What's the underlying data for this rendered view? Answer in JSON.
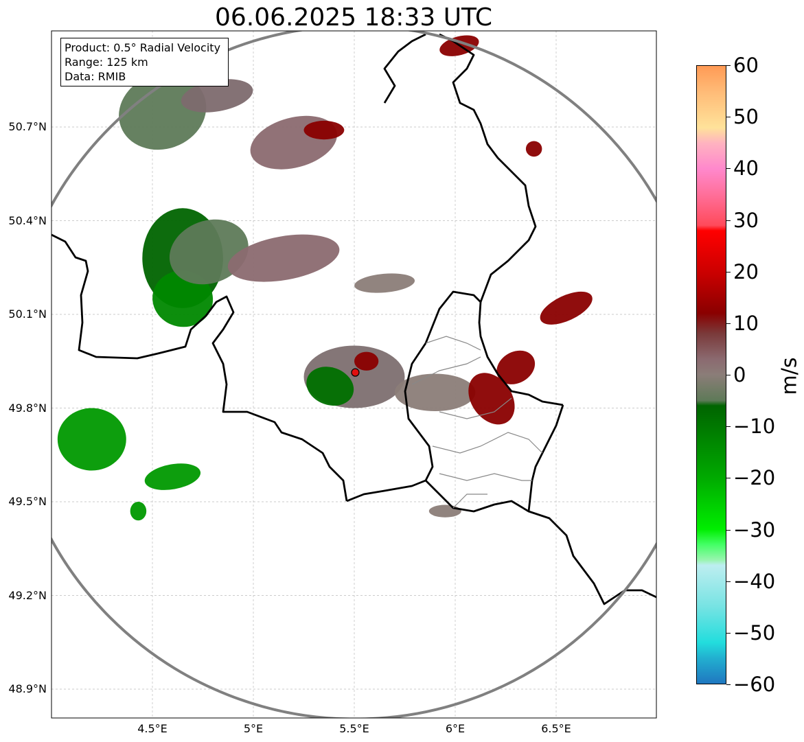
{
  "title": "06.06.2025 18:33 UTC",
  "info": {
    "product": "Product: 0.5° Radial Velocity",
    "range": "Range: 125 km",
    "source": "Data: RMIB"
  },
  "y_ticks": [
    "50.7°N",
    "50.4°N",
    "50.1°N",
    "49.8°N",
    "49.5°N",
    "49.2°N",
    "48.9°N"
  ],
  "x_ticks": [
    "4.5°E",
    "5°E",
    "5.5°E",
    "6°E",
    "6.5°E"
  ],
  "colorbar": {
    "unit": "m/s",
    "ticks": [
      "60",
      "50",
      "40",
      "30",
      "20",
      "10",
      "0",
      "−10",
      "−20",
      "−30",
      "−40",
      "−50",
      "−60"
    ],
    "stops": [
      {
        "v": 60,
        "c": "#ff9a55"
      },
      {
        "v": 55,
        "c": "#ffbb77"
      },
      {
        "v": 48,
        "c": "#ffe29a"
      },
      {
        "v": 45,
        "c": "#ffb3c0"
      },
      {
        "v": 40,
        "c": "#ff88cc"
      },
      {
        "v": 35,
        "c": "#ff6f9a"
      },
      {
        "v": 29,
        "c": "#ff4a5a"
      },
      {
        "v": 28,
        "c": "#ff0000"
      },
      {
        "v": 20,
        "c": "#cc0000"
      },
      {
        "v": 12,
        "c": "#8a0000"
      },
      {
        "v": 8,
        "c": "#7a3a3a"
      },
      {
        "v": 3,
        "c": "#8b6a70"
      },
      {
        "v": 0,
        "c": "#8b7d78"
      },
      {
        "v": -5,
        "c": "#5e7a58"
      },
      {
        "v": -6,
        "c": "#006400"
      },
      {
        "v": -20,
        "c": "#00aa00"
      },
      {
        "v": -30,
        "c": "#00ee00"
      },
      {
        "v": -33,
        "c": "#44ff66"
      },
      {
        "v": -36,
        "c": "#99f5b0"
      },
      {
        "v": -37,
        "c": "#bdeef0"
      },
      {
        "v": -45,
        "c": "#77e3e3"
      },
      {
        "v": -52,
        "c": "#22dddd"
      },
      {
        "v": -55,
        "c": "#22b0d0"
      },
      {
        "v": -60,
        "c": "#1f77c0"
      }
    ]
  },
  "map": {
    "lon_range": [
      4.0,
      7.0
    ],
    "lat_range": [
      48.8,
      50.98
    ],
    "radar": {
      "lon": 5.505,
      "lat": 49.914
    },
    "range_circle_color": "#808080",
    "border_color": "#000000",
    "admin_border_color": "#808080",
    "echoes": [
      {
        "lon": 4.55,
        "lat": 50.75,
        "rx": 0.22,
        "ry": 0.12,
        "color": "#5e7a58",
        "rot": -20
      },
      {
        "lon": 4.82,
        "lat": 50.8,
        "rx": 0.18,
        "ry": 0.05,
        "color": "#7d6a6e",
        "rot": -10
      },
      {
        "lon": 5.2,
        "lat": 50.65,
        "rx": 0.22,
        "ry": 0.08,
        "color": "#8b6a70",
        "rot": -15
      },
      {
        "lon": 5.35,
        "lat": 50.69,
        "rx": 0.1,
        "ry": 0.03,
        "color": "#8a0000",
        "rot": 0
      },
      {
        "lon": 4.65,
        "lat": 50.28,
        "rx": 0.2,
        "ry": 0.16,
        "color": "#006400",
        "rot": 0
      },
      {
        "lon": 4.65,
        "lat": 50.15,
        "rx": 0.15,
        "ry": 0.09,
        "color": "#008800",
        "rot": 10
      },
      {
        "lon": 4.78,
        "lat": 50.3,
        "rx": 0.2,
        "ry": 0.1,
        "color": "#5e7a58",
        "rot": -20
      },
      {
        "lon": 5.15,
        "lat": 50.28,
        "rx": 0.28,
        "ry": 0.07,
        "color": "#8b6a70",
        "rot": -10
      },
      {
        "lon": 5.5,
        "lat": 49.9,
        "rx": 0.25,
        "ry": 0.1,
        "color": "#7d6f70",
        "rot": 0
      },
      {
        "lon": 5.38,
        "lat": 49.87,
        "rx": 0.12,
        "ry": 0.06,
        "color": "#007000",
        "rot": 20
      },
      {
        "lon": 5.56,
        "lat": 49.95,
        "rx": 0.06,
        "ry": 0.03,
        "color": "#8a0000",
        "rot": 0
      },
      {
        "lon": 5.65,
        "lat": 50.2,
        "rx": 0.15,
        "ry": 0.03,
        "color": "#8b7d78",
        "rot": -5
      },
      {
        "lon": 5.9,
        "lat": 49.85,
        "rx": 0.2,
        "ry": 0.06,
        "color": "#8b7d78",
        "rot": 0
      },
      {
        "lon": 6.18,
        "lat": 49.83,
        "rx": 0.1,
        "ry": 0.09,
        "color": "#8a0000",
        "rot": -35
      },
      {
        "lon": 6.3,
        "lat": 49.93,
        "rx": 0.1,
        "ry": 0.05,
        "color": "#8a0000",
        "rot": -30
      },
      {
        "lon": 6.55,
        "lat": 50.12,
        "rx": 0.14,
        "ry": 0.04,
        "color": "#8a0000",
        "rot": -25
      },
      {
        "lon": 4.2,
        "lat": 49.7,
        "rx": 0.17,
        "ry": 0.1,
        "color": "#009900",
        "rot": 0
      },
      {
        "lon": 4.6,
        "lat": 49.58,
        "rx": 0.14,
        "ry": 0.04,
        "color": "#009900",
        "rot": -10
      },
      {
        "lon": 4.43,
        "lat": 49.47,
        "rx": 0.04,
        "ry": 0.03,
        "color": "#009900",
        "rot": 0
      },
      {
        "lon": 6.02,
        "lat": 50.96,
        "rx": 0.1,
        "ry": 0.03,
        "color": "#8a0000",
        "rot": -15
      },
      {
        "lon": 6.39,
        "lat": 50.63,
        "rx": 0.04,
        "ry": 0.025,
        "color": "#8a0000",
        "rot": 0
      },
      {
        "lon": 5.95,
        "lat": 49.47,
        "rx": 0.08,
        "ry": 0.02,
        "color": "#8b7d78",
        "rot": 0
      }
    ]
  }
}
